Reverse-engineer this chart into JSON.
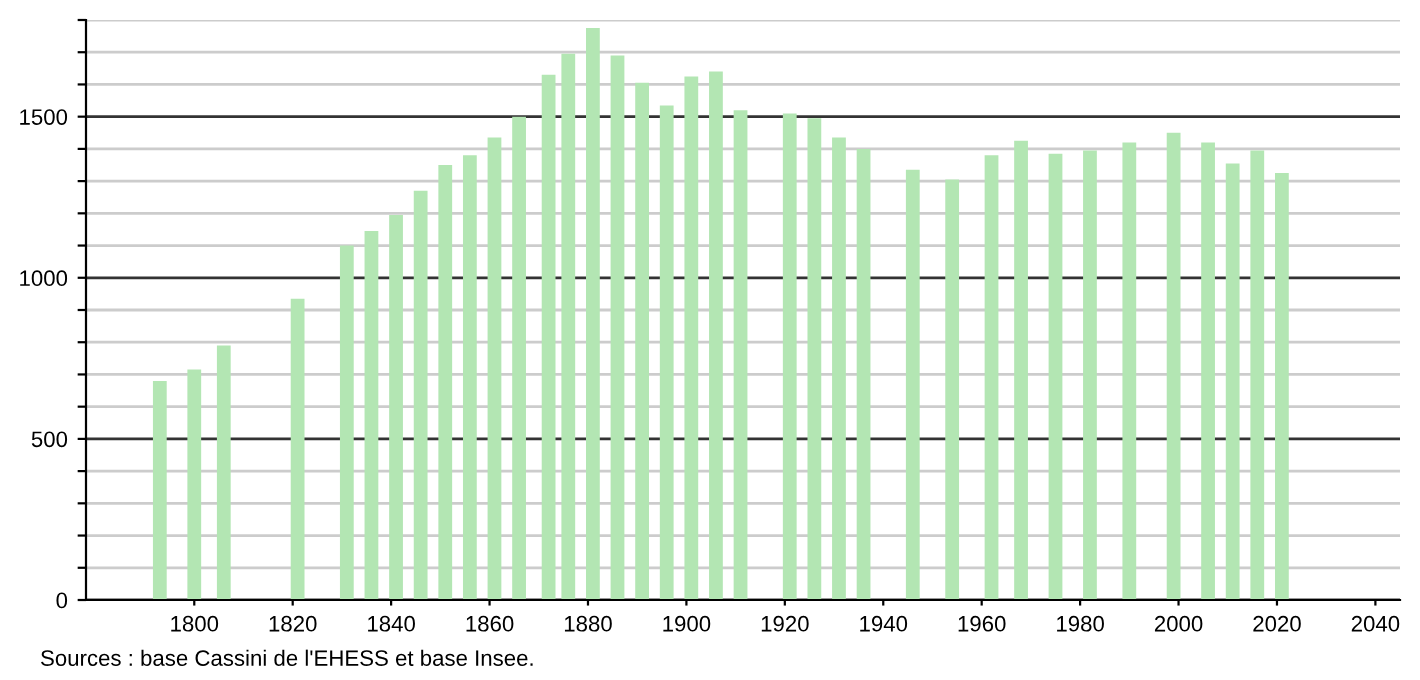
{
  "chart_data": {
    "type": "bar",
    "x": [
      1793,
      1800,
      1806,
      1821,
      1831,
      1836,
      1841,
      1846,
      1851,
      1856,
      1861,
      1866,
      1872,
      1876,
      1881,
      1886,
      1891,
      1896,
      1901,
      1906,
      1911,
      1921,
      1926,
      1931,
      1936,
      1946,
      1954,
      1962,
      1968,
      1975,
      1982,
      1990,
      1999,
      2006,
      2011,
      2016,
      2021
    ],
    "values": [
      680,
      715,
      790,
      935,
      1100,
      1145,
      1195,
      1270,
      1350,
      1380,
      1435,
      1500,
      1630,
      1695,
      1775,
      1690,
      1605,
      1535,
      1625,
      1640,
      1520,
      1510,
      1495,
      1435,
      1400,
      1335,
      1305,
      1380,
      1425,
      1385,
      1395,
      1420,
      1450,
      1420,
      1355,
      1395,
      1325
    ],
    "color": "#b3e6b3",
    "xlim": [
      1778,
      2045
    ],
    "xticks": [
      1800,
      1820,
      1840,
      1860,
      1880,
      1900,
      1920,
      1940,
      1960,
      1980,
      2000,
      2020,
      2040
    ],
    "ylim": [
      0,
      1800
    ],
    "yticks": [
      0,
      {
        "value": 100,
        "label": null
      },
      {
        "value": 200,
        "label": null
      },
      {
        "value": 300,
        "label": null
      },
      {
        "value": 400,
        "label": null
      },
      500,
      {
        "value": 600,
        "label": null
      },
      {
        "value": 700,
        "label": null
      },
      {
        "value": 800,
        "label": null
      },
      {
        "value": 900,
        "label": null
      },
      1000,
      {
        "value": 1100,
        "label": null
      },
      {
        "value": 1200,
        "label": null
      },
      {
        "value": 1300,
        "label": null
      },
      {
        "value": 1400,
        "label": null
      },
      1500,
      {
        "value": 1600,
        "label": null
      },
      {
        "value": 1700,
        "label": null
      },
      {
        "value": 1800,
        "label": null
      }
    ],
    "grid": "y",
    "annotations": [
      "Sources : base Cassini de l'EHESS et base Insee."
    ]
  }
}
